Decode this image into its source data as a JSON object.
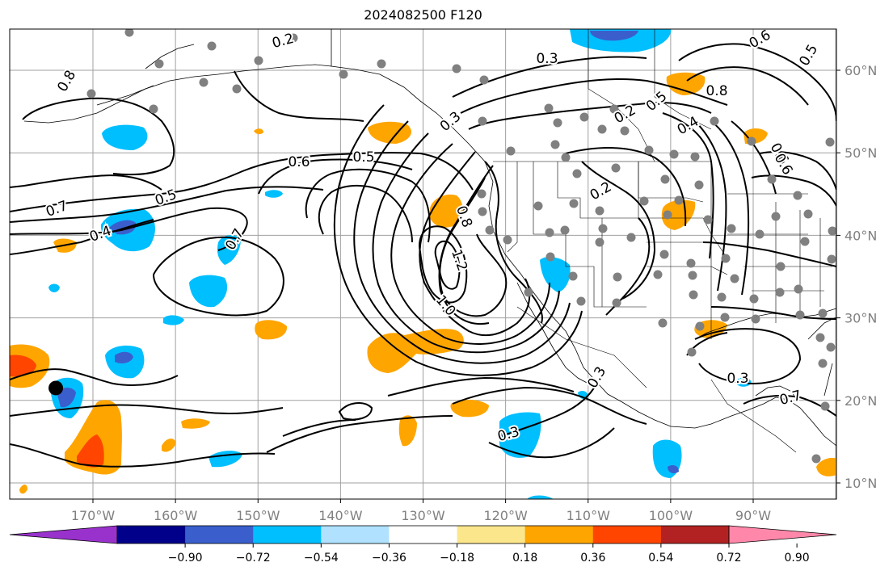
{
  "title": "2024082500 F120",
  "map": {
    "region": "North Pacific / North America",
    "lon_range": [
      -180,
      -80
    ],
    "lat_range": [
      8,
      65
    ],
    "lon_ticks": [
      "170°W",
      "160°W",
      "150°W",
      "140°W",
      "130°W",
      "120°W",
      "110°W",
      "100°W",
      "90°W"
    ],
    "lat_ticks": [
      "10°N",
      "20°N",
      "30°N",
      "40°N",
      "50°N",
      "60°N"
    ],
    "tick_color": "#808080",
    "gridlines": true,
    "marker": {
      "type": "storm-center-dot",
      "lon": -174.5,
      "lat": 21.5,
      "color": "#000000"
    },
    "station_dot_color": "#808080"
  },
  "contours": {
    "color": "#000000",
    "labels": [
      "0.2",
      "0.8",
      "0.3",
      "0.7",
      "0.6",
      "0.5",
      "0.4",
      "0.5",
      "0.7",
      "0.6",
      "0.5",
      "0.8",
      "1.2",
      "1.0",
      "0.3",
      "0.3",
      "0.2",
      "0.2",
      "0.3",
      "0.3",
      "0.5",
      "0.4",
      "0.8",
      "0.7",
      "0.6",
      "0.6"
    ]
  },
  "colorbar": {
    "orientation": "horizontal",
    "position": "bottom",
    "ticks": [
      "−0.90",
      "−0.72",
      "−0.54",
      "−0.36",
      "−0.18",
      "0.18",
      "0.36",
      "0.54",
      "0.72",
      "0.90"
    ],
    "colors": [
      "#9932cc",
      "#00008b",
      "#3a5fcd",
      "#00bfff",
      "#b0e2ff",
      "#ffffff",
      "#fbe68c",
      "#ffa500",
      "#ff4500",
      "#b22222",
      "#ff88aa"
    ],
    "extend": "both"
  }
}
